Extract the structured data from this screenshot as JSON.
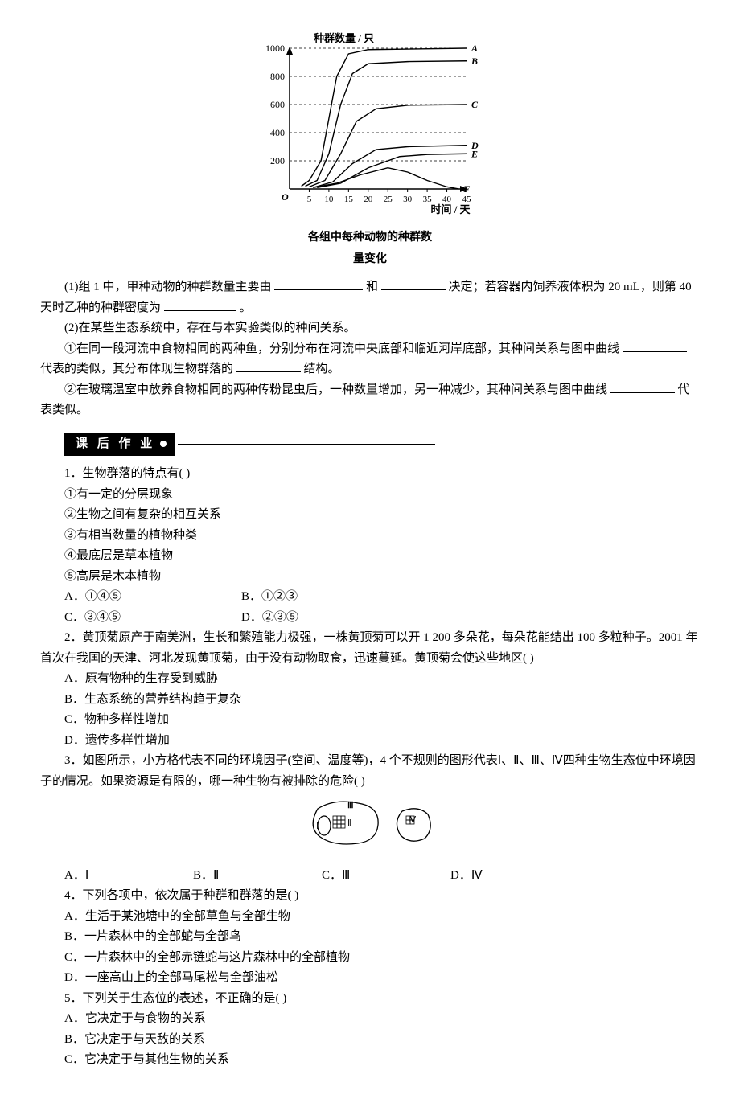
{
  "chart": {
    "type": "line",
    "ylabel": "种群数量 / 只",
    "xlabel": "时间 / 天",
    "caption_line1": "各组中每种动物的种群数",
    "caption_line2": "量变化",
    "ylim": [
      0,
      1000
    ],
    "xlim": [
      0,
      45
    ],
    "yticks": [
      200,
      400,
      600,
      800,
      1000
    ],
    "xticks": [
      5,
      10,
      15,
      20,
      25,
      30,
      35,
      40,
      45
    ],
    "grid_dash": "3,3",
    "grid_color": "#000000",
    "axis_color": "#000000",
    "bg_color": "#ffffff",
    "label_fontsize": 13,
    "tick_fontsize": 12,
    "series": [
      {
        "name": "A",
        "label": "A",
        "color": "#000000",
        "italic": true,
        "points": [
          [
            3,
            20
          ],
          [
            5,
            60
          ],
          [
            8,
            200
          ],
          [
            10,
            500
          ],
          [
            12,
            800
          ],
          [
            15,
            960
          ],
          [
            20,
            990
          ],
          [
            45,
            1000
          ]
        ]
      },
      {
        "name": "B",
        "label": "B",
        "color": "#000000",
        "italic": true,
        "points": [
          [
            4,
            20
          ],
          [
            7,
            60
          ],
          [
            10,
            250
          ],
          [
            13,
            600
          ],
          [
            16,
            820
          ],
          [
            20,
            890
          ],
          [
            30,
            905
          ],
          [
            45,
            910
          ]
        ]
      },
      {
        "name": "C",
        "label": "C",
        "color": "#000000",
        "italic": true,
        "points": [
          [
            5,
            15
          ],
          [
            9,
            60
          ],
          [
            13,
            250
          ],
          [
            17,
            480
          ],
          [
            22,
            570
          ],
          [
            30,
            595
          ],
          [
            45,
            600
          ]
        ]
      },
      {
        "name": "D",
        "label": "D",
        "color": "#000000",
        "italic": true,
        "points": [
          [
            6,
            10
          ],
          [
            11,
            50
          ],
          [
            16,
            180
          ],
          [
            22,
            280
          ],
          [
            30,
            300
          ],
          [
            45,
            310
          ]
        ]
      },
      {
        "name": "E",
        "label": "E",
        "color": "#000000",
        "italic": true,
        "points": [
          [
            7,
            10
          ],
          [
            13,
            40
          ],
          [
            20,
            150
          ],
          [
            28,
            230
          ],
          [
            35,
            245
          ],
          [
            45,
            250
          ]
        ]
      },
      {
        "name": "F",
        "label": "F",
        "color": "#000000",
        "italic": true,
        "points": [
          [
            6,
            10
          ],
          [
            12,
            40
          ],
          [
            18,
            100
          ],
          [
            25,
            150
          ],
          [
            30,
            120
          ],
          [
            35,
            60
          ],
          [
            40,
            15
          ],
          [
            43,
            0
          ]
        ]
      }
    ]
  },
  "q_pre": {
    "p1_a": "(1)组 1 中，甲种动物的种群数量主要由",
    "p1_b": "和",
    "p1_c": "决定；若容器内饲养液体积为 20 mL，则第 40 天时乙种的种群密度为",
    "p1_d": "。",
    "p2": "(2)在某些生态系统中，存在与本实验类似的种间关系。",
    "p2_1a": "①在同一段河流中食物相同的两种鱼，分别分布在河流中央底部和临近河岸底部，其种间关系与图中曲线",
    "p2_1b": "代表的类似，其分布体现生物群落的",
    "p2_1c": "结构。",
    "p2_2a": "②在玻璃温室中放养食物相同的两种传粉昆虫后，一种数量增加，另一种减少，其种间关系与图中曲线",
    "p2_2b": "代表类似。"
  },
  "banner": "课 后 作 业",
  "q1": {
    "stem": "1．生物群落的特点有(        )",
    "i1": "①有一定的分层现象",
    "i2": "②生物之间有复杂的相互关系",
    "i3": "③有相当数量的植物种类",
    "i4": "④最底层是草本植物",
    "i5": "⑤高层是木本植物",
    "A": "A．①④⑤",
    "B": "B．①②③",
    "C": "C．③④⑤",
    "D": "D．②③⑤"
  },
  "q2": {
    "stem": "2．黄顶菊原产于南美洲，生长和繁殖能力极强，一株黄顶菊可以开 1 200 多朵花，每朵花能结出 100 多粒种子。2001 年首次在我国的天津、河北发现黄顶菊，由于没有动物取食，迅速蔓延。黄顶菊会使这些地区(        )",
    "A": "A．原有物种的生存受到威胁",
    "B": "B．生态系统的营养结构趋于复杂",
    "C": "C．物种多样性增加",
    "D": "D．遗传多样性增加"
  },
  "q3": {
    "stem_a": "3．如图所示，小方格代表不同的环境因子(空间、温度等)，4 个不规则的图形代表Ⅰ、Ⅱ、Ⅲ、Ⅳ四种生物生态位中环境因子的情况。如果资源是有限的，哪一种生物有被排除的危险(        )",
    "A": "A．Ⅰ",
    "B": "B．Ⅱ",
    "C": "C．Ⅲ",
    "D": "D．Ⅳ",
    "fig": {
      "labels": [
        "Ⅰ",
        "Ⅱ",
        "Ⅲ",
        "Ⅳ"
      ],
      "stroke": "#000000",
      "fill": "#ffffff",
      "grid_size": 5
    }
  },
  "q4": {
    "stem": "4．下列各项中，依次属于种群和群落的是(        )",
    "A": "A．生活于某池塘中的全部草鱼与全部生物",
    "B": "B．一片森林中的全部蛇与全部鸟",
    "C": "C．一片森林中的全部赤链蛇与这片森林中的全部植物",
    "D": "D．一座高山上的全部马尾松与全部油松"
  },
  "q5": {
    "stem": "5．下列关于生态位的表述，不正确的是(        )",
    "A": "A．它决定于与食物的关系",
    "B": "B．它决定于与天敌的关系",
    "C": "C．它决定于与其他生物的关系"
  }
}
